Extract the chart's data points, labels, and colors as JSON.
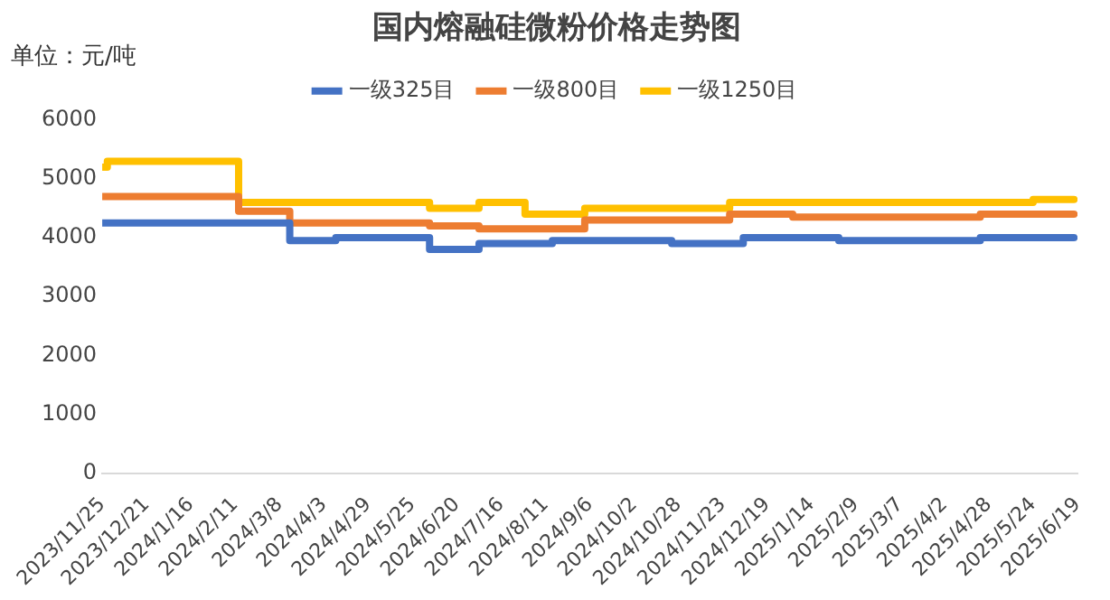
{
  "chart_data": {
    "type": "step",
    "title": "国内熔融硅微粉价格走势图",
    "annotations": [
      "单位：元/吨"
    ],
    "series": [
      {
        "name": "一级325目",
        "color": "#4472c4",
        "x": [
          "2023-11-25",
          "2024-03-14",
          "2024-04-10",
          "2024-06-04",
          "2024-07-03",
          "2024-08-15",
          "2024-10-24",
          "2024-12-05",
          "2025-01-30",
          "2025-04-23",
          "2025-06-17"
        ],
        "values": [
          4250,
          3950,
          4000,
          3800,
          3900,
          3950,
          3900,
          4000,
          3950,
          4000,
          4000
        ]
      },
      {
        "name": "一级800目",
        "color": "#ed7d31",
        "x": [
          "2023-11-25",
          "2024-02-13",
          "2024-03-14",
          "2024-06-04",
          "2024-07-03",
          "2024-09-03",
          "2024-11-27",
          "2025-01-03",
          "2025-04-23",
          "2025-06-17"
        ],
        "values": [
          4700,
          4450,
          4250,
          4200,
          4150,
          4300,
          4400,
          4350,
          4400,
          4400
        ]
      },
      {
        "name": "一级1250目",
        "color": "#ffc000",
        "x": [
          "2023-11-25",
          "2023-11-28",
          "2024-02-13",
          "2024-06-04",
          "2024-07-03",
          "2024-07-30",
          "2024-09-03",
          "2024-11-27",
          "2025-05-24",
          "2025-06-17"
        ],
        "values": [
          5200,
          5300,
          4600,
          4500,
          4600,
          4400,
          4500,
          4600,
          4650,
          4650
        ]
      }
    ],
    "xlim": [
      "2023-11-25",
      "2025-06-19"
    ],
    "xticks": [
      {
        "value": "2023-11-25",
        "label": "2023/11/25"
      },
      {
        "value": "2023-12-21",
        "label": "2023/12/21"
      },
      {
        "value": "2024-01-16",
        "label": "2024/1/16"
      },
      {
        "value": "2024-02-11",
        "label": "2024/2/11"
      },
      {
        "value": "2024-03-08",
        "label": "2024/3/8"
      },
      {
        "value": "2024-04-03",
        "label": "2024/4/3"
      },
      {
        "value": "2024-04-29",
        "label": "2024/4/29"
      },
      {
        "value": "2024-05-25",
        "label": "2024/5/25"
      },
      {
        "value": "2024-06-20",
        "label": "2024/6/20"
      },
      {
        "value": "2024-07-16",
        "label": "2024/7/16"
      },
      {
        "value": "2024-08-11",
        "label": "2024/8/11"
      },
      {
        "value": "2024-09-06",
        "label": "2024/9/6"
      },
      {
        "value": "2024-10-02",
        "label": "2024/10/2"
      },
      {
        "value": "2024-10-28",
        "label": "2024/10/28"
      },
      {
        "value": "2024-11-23",
        "label": "2024/11/23"
      },
      {
        "value": "2024-12-19",
        "label": "2024/12/19"
      },
      {
        "value": "2025-01-14",
        "label": "2025/1/14"
      },
      {
        "value": "2025-02-09",
        "label": "2025/2/9"
      },
      {
        "value": "2025-03-07",
        "label": "2025/3/7"
      },
      {
        "value": "2025-04-02",
        "label": "2025/4/2"
      },
      {
        "value": "2025-04-28",
        "label": "2025/4/28"
      },
      {
        "value": "2025-05-24",
        "label": "2025/5/24"
      },
      {
        "value": "2025-06-19",
        "label": "2025/6/19"
      }
    ],
    "ylim": [
      0,
      6000
    ],
    "yticks": [
      0,
      1000,
      2000,
      3000,
      4000,
      5000,
      6000
    ],
    "grid": false,
    "legend": "top",
    "marker": "none",
    "line_style": "solid"
  }
}
